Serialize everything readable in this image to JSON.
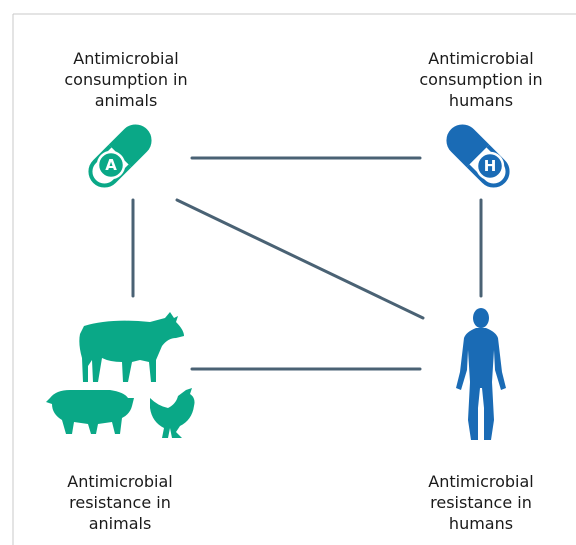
{
  "nodes": [
    {
      "label": [
        "Antimicrobial",
        "consumption in",
        "animals"
      ],
      "icon_letter": "A"
    },
    {
      "label": [
        "Antimicrobial",
        "consumption in",
        "humans"
      ],
      "icon_letter": "H"
    },
    {
      "label": [
        "Antimicrobial",
        "resistance in",
        "animals"
      ]
    },
    {
      "label": [
        "Antimicrobial",
        "resistance in",
        "humans"
      ]
    }
  ]
}
